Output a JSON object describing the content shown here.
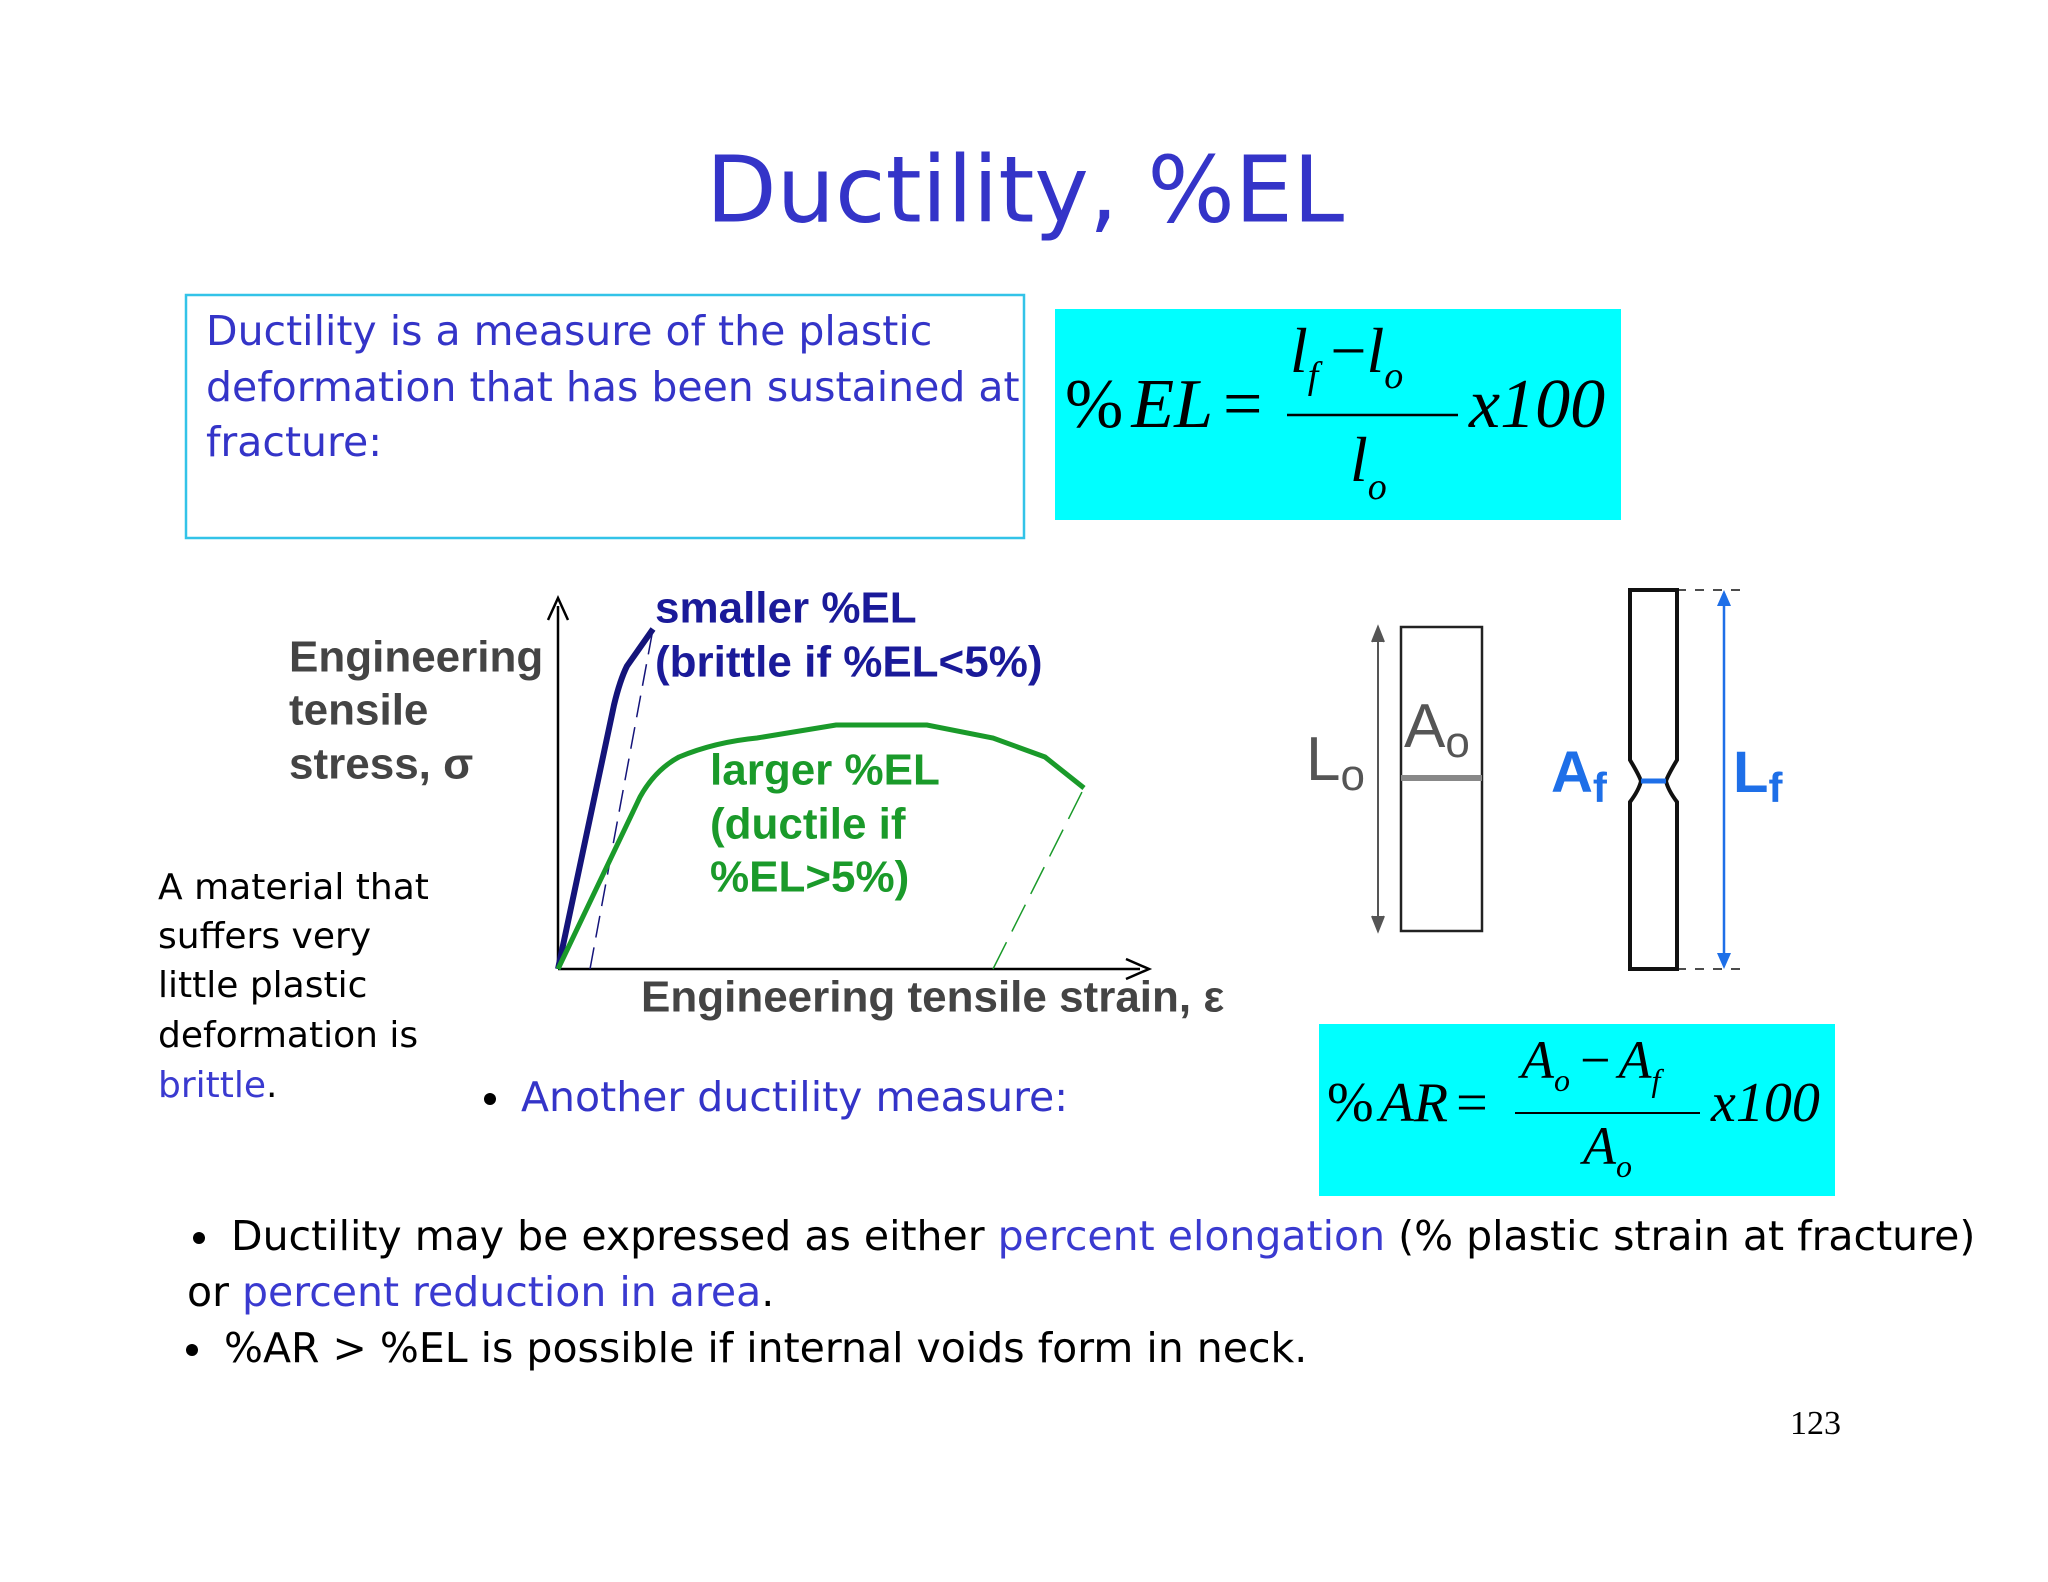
{
  "title": "Ductility, %EL",
  "definition": [
    "Ductility is a measure of the plastic",
    "deformation that has been sustained at",
    "fracture:"
  ],
  "formula_el": {
    "pct": "%",
    "var": "EL",
    "eq": "=",
    "num_a": "l",
    "num_a_sub": "f",
    "minus": "−",
    "num_b": "l",
    "num_b_sub": "o",
    "den": "l",
    "den_sub": "o",
    "factor": "x100"
  },
  "diagram": {
    "y_label": [
      "Engineering",
      "tensile",
      "stress, σ"
    ],
    "x_label": "Engineering tensile strain, ε",
    "brittle_label": [
      "smaller %EL",
      "(brittle if %EL<5%)"
    ],
    "ductile_label": [
      "larger %EL",
      "(ductile if",
      "%EL>5%)"
    ]
  },
  "specimen": {
    "lo": "L",
    "lo_sub": "o",
    "ao": "A",
    "ao_sub": "o",
    "af": "A",
    "af_sub": "f",
    "lf": "L",
    "lf_sub": "f"
  },
  "side_note": {
    "lines": [
      "A material that",
      "suffers very",
      "little plastic",
      "deformation is"
    ],
    "term": "brittle",
    "end": "."
  },
  "another": "Another ductility measure:",
  "formula_ar": {
    "pct": "%",
    "var": "AR",
    "eq": "=",
    "num_a": "A",
    "num_a_sub": "o",
    "minus": "−",
    "num_b": "A",
    "num_b_sub": "f",
    "den": "A",
    "den_sub": "o",
    "factor": "x100"
  },
  "bullets": [
    [
      "Ductility may be expressed as either ",
      "percent elongation",
      " (% plastic strain at fracture)",
      "or ",
      "percent reduction in area",
      "."
    ],
    [
      "%AR > %EL is possible if internal voids form in neck."
    ]
  ],
  "page_number": "123"
}
